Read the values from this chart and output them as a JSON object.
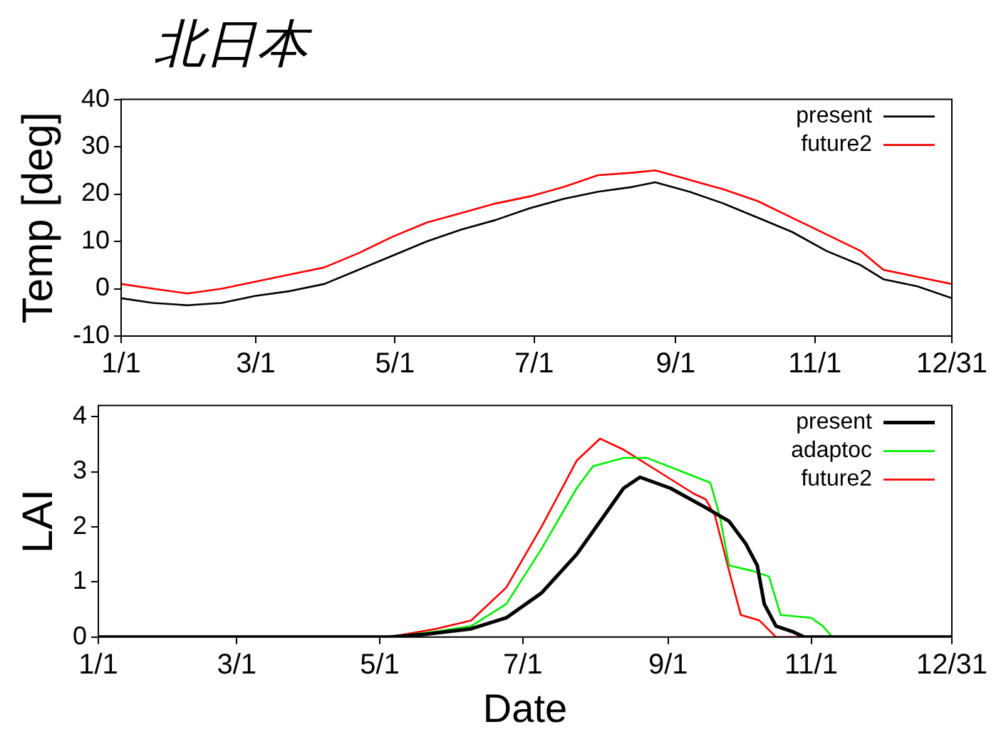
{
  "chart_data": [
    {
      "type": "line",
      "title": "北日本",
      "ylabel": "Temp [deg]",
      "xlim": [
        "--01-01",
        "--12-31"
      ],
      "xticks": [
        {
          "value": "--01-01",
          "label": "1/1"
        },
        {
          "value": "--03-01",
          "label": "3/1"
        },
        {
          "value": "--05-01",
          "label": "5/1"
        },
        {
          "value": "--07-01",
          "label": "7/1"
        },
        {
          "value": "--09-01",
          "label": "9/1"
        },
        {
          "value": "--11-01",
          "label": "11/1"
        },
        {
          "value": "--12-31",
          "label": "12/31"
        }
      ],
      "ylim": [
        -10,
        40
      ],
      "yticks": [
        -10,
        0,
        10,
        20,
        30,
        40
      ],
      "grid": false,
      "legend": "top right",
      "marker": "none",
      "line_style": "solid",
      "x": [
        "--01-01",
        "--01-15",
        "--01-30",
        "--02-14",
        "--03-01",
        "--03-16",
        "--03-31",
        "--04-15",
        "--04-30",
        "--05-15",
        "--05-30",
        "--06-14",
        "--06-29",
        "--07-14",
        "--07-29",
        "--08-13",
        "--08-23",
        "--09-07",
        "--09-22",
        "--10-07",
        "--10-22",
        "--11-06",
        "--11-21",
        "--12-01",
        "--12-16",
        "--12-31"
      ],
      "series": [
        {
          "name": "present",
          "color": "#000000",
          "values": [
            -2,
            -3,
            -3.5,
            -3,
            -1.5,
            -0.5,
            1,
            4,
            7,
            10,
            12.5,
            14.5,
            17,
            19,
            20.5,
            21.5,
            22.5,
            20.5,
            18,
            15,
            12,
            8,
            5,
            2,
            0.5,
            -2
          ]
        },
        {
          "name": "future2",
          "color": "#ff0000",
          "values": [
            1,
            0,
            -1,
            0,
            1.5,
            3,
            4.5,
            7.5,
            11,
            14,
            16,
            18,
            19.5,
            21.5,
            24,
            24.5,
            25,
            23,
            21,
            18.5,
            15,
            11.5,
            8,
            4,
            2.5,
            1
          ]
        }
      ]
    },
    {
      "type": "line",
      "xlabel": "Date",
      "ylabel": "LAI",
      "xlim": [
        "--01-01",
        "--12-31"
      ],
      "xticks": [
        {
          "value": "--01-01",
          "label": "1/1"
        },
        {
          "value": "--03-01",
          "label": "3/1"
        },
        {
          "value": "--05-01",
          "label": "5/1"
        },
        {
          "value": "--07-01",
          "label": "7/1"
        },
        {
          "value": "--09-01",
          "label": "9/1"
        },
        {
          "value": "--11-01",
          "label": "11/1"
        },
        {
          "value": "--12-31",
          "label": "12/31"
        }
      ],
      "ylim": [
        0,
        4.2
      ],
      "yticks": [
        0,
        1,
        2,
        3,
        4
      ],
      "grid": false,
      "legend": "top right",
      "marker": "none",
      "line_style": "solid",
      "series": [
        {
          "name": "present",
          "color": "#000000",
          "x": [
            "--01-01",
            "--05-05",
            "--05-20",
            "--06-09",
            "--06-24",
            "--07-09",
            "--07-24",
            "--08-03",
            "--08-13",
            "--08-20",
            "--09-02",
            "--09-17",
            "--09-27",
            "--10-04",
            "--10-09",
            "--10-12",
            "--10-17",
            "--10-24",
            "--10-29",
            "--12-31"
          ],
          "values": [
            0,
            0,
            0.05,
            0.15,
            0.35,
            0.8,
            1.5,
            2.1,
            2.7,
            2.9,
            2.7,
            2.35,
            2.1,
            1.7,
            1.3,
            0.6,
            0.2,
            0.1,
            0,
            0
          ]
        },
        {
          "name": "adaptoc",
          "color": "#00ee00",
          "x": [
            "--01-01",
            "--05-05",
            "--05-25",
            "--06-09",
            "--06-24",
            "--07-09",
            "--07-24",
            "--07-31",
            "--08-13",
            "--08-23",
            "--09-07",
            "--09-19",
            "--09-23",
            "--09-27",
            "--10-07",
            "--10-14",
            "--10-19",
            "--11-01",
            "--11-06",
            "--11-10",
            "--12-31"
          ],
          "values": [
            0,
            0,
            0.1,
            0.2,
            0.6,
            1.6,
            2.7,
            3.1,
            3.25,
            3.25,
            3,
            2.8,
            2.2,
            1.3,
            1.2,
            1.1,
            0.4,
            0.35,
            0.2,
            0,
            0
          ]
        },
        {
          "name": "future2",
          "color": "#ff0000",
          "x": [
            "--01-01",
            "--05-05",
            "--05-25",
            "--06-09",
            "--06-24",
            "--07-09",
            "--07-24",
            "--08-03",
            "--08-13",
            "--08-28",
            "--09-12",
            "--09-17",
            "--09-21",
            "--09-27",
            "--10-02",
            "--10-10",
            "--10-17",
            "--12-31"
          ],
          "values": [
            0,
            0,
            0.15,
            0.3,
            0.9,
            2,
            3.2,
            3.6,
            3.4,
            3,
            2.6,
            2.5,
            2.2,
            1.2,
            0.4,
            0.3,
            0,
            0
          ]
        }
      ]
    }
  ]
}
